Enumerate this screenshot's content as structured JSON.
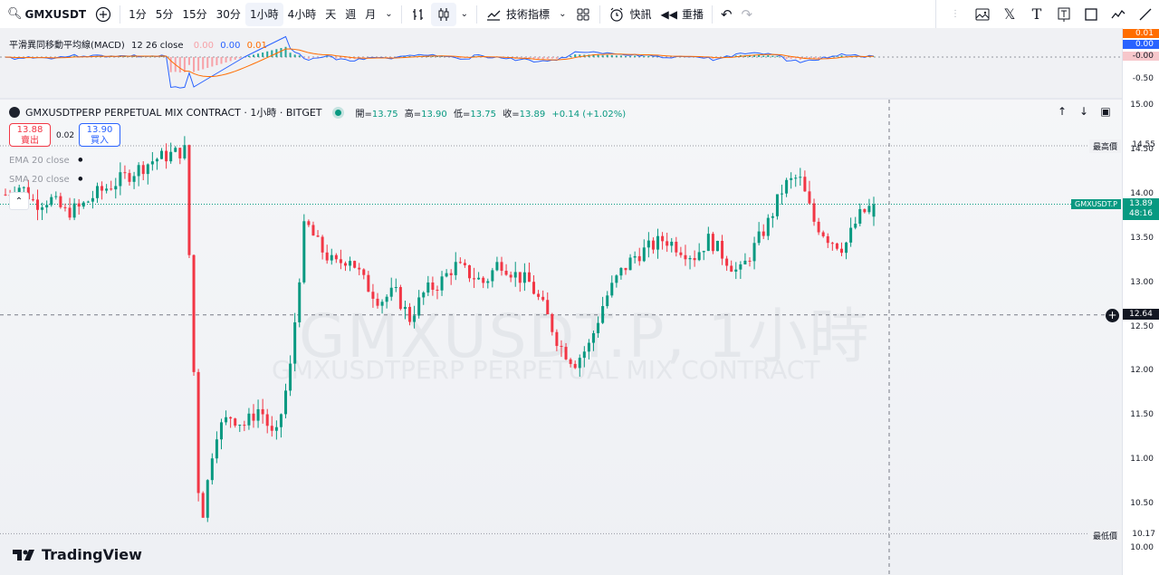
{
  "toolbar": {
    "symbol": "GMXUSDT",
    "intervals": [
      "1分",
      "5分",
      "15分",
      "30分",
      "1小時",
      "4小時",
      "天",
      "週",
      "月"
    ],
    "active_interval": "1小時",
    "indicators_label": "技術指標",
    "alert_label": "快訊",
    "replay_label": "重播"
  },
  "macd": {
    "legend_name": "平滑異同移動平均線(MACD)",
    "legend_params": "12 26 close",
    "values": [
      "0.00",
      "0.00",
      "0.01"
    ],
    "value_colors": [
      "#f7a1a7",
      "#2962ff",
      "#ff6d00"
    ],
    "axis_ticks": [
      "0.01",
      "0.00",
      "-0.00",
      "-0.50"
    ]
  },
  "main": {
    "title": "GMXUSDTPERP PERPETUAL MIX CONTRACT · 1小時 · BITGET",
    "ohlc": {
      "open_label": "開",
      "open": "13.75",
      "high_label": "高",
      "high": "13.90",
      "low_label": "低",
      "low": "13.75",
      "close_label": "收",
      "close": "13.89",
      "change": "+0.14 (+1.02%)"
    },
    "sell_price": "13.88",
    "sell_label": "賣出",
    "spread": "0.02",
    "buy_price": "13.90",
    "buy_label": "買入",
    "ema_label": "EMA 20 close",
    "sma_label": "SMA 20 close",
    "watermark_main": "GMXUSDT.P, 1小時",
    "watermark_sub": "GMXUSDTPERP PERPETUAL MIX CONTRACT",
    "logo_text": "TradingView"
  },
  "price_axis": {
    "ticks": [
      "15.00",
      "14.50",
      "14.00",
      "13.50",
      "13.00",
      "12.50",
      "12.00",
      "11.50",
      "11.00",
      "10.50",
      "10.00"
    ],
    "high_label": "最高價",
    "high_value": "14.55",
    "low_label": "最低價",
    "low_value": "10.17",
    "current_symbol": "GMXUSDT.P",
    "current_price": "13.89",
    "countdown": "48:16",
    "crosshair_price": "12.64"
  },
  "colors": {
    "up": "#089981",
    "down": "#f23645",
    "macd_line": "#2962ff",
    "signal_line": "#ff6d00",
    "current_tag": "#089981"
  },
  "chart_data": {
    "type": "candlestick",
    "symbol": "GMXUSDT.P",
    "interval": "1小時",
    "ylim": [
      10.0,
      15.0
    ],
    "last": {
      "open": 13.75,
      "high": 13.9,
      "low": 13.75,
      "close": 13.89
    },
    "session_high": 14.55,
    "session_low": 10.17,
    "close_path": [
      14.0,
      14.1,
      13.9,
      13.95,
      13.8,
      13.85,
      14.0,
      14.1,
      14.2,
      14.3,
      14.4,
      14.45,
      14.5,
      10.2,
      11.3,
      11.5,
      11.4,
      11.6,
      11.2,
      12.0,
      13.7,
      13.4,
      13.2,
      13.3,
      13.0,
      12.8,
      12.9,
      12.6,
      12.9,
      13.0,
      13.2,
      13.1,
      13.0,
      13.25,
      13.1,
      13.0,
      12.7,
      12.3,
      12.1,
      12.3,
      12.8,
      13.1,
      13.3,
      13.4,
      13.5,
      13.4,
      13.3,
      13.5,
      13.3,
      13.1,
      13.4,
      13.7,
      14.1,
      14.2,
      13.7,
      13.5,
      13.4,
      13.75,
      13.89
    ]
  }
}
